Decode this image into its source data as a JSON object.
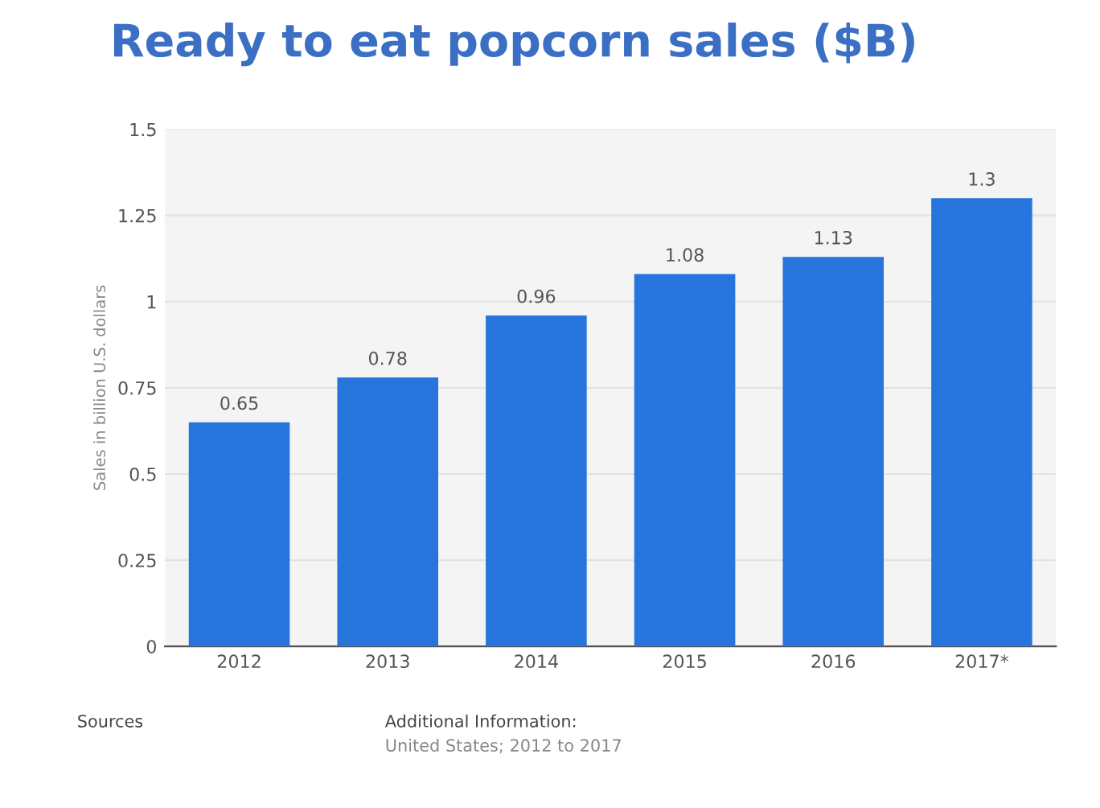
{
  "chart_data": {
    "type": "bar",
    "title": "Ready to eat popcorn sales ($B)",
    "ylabel": "Sales in billion U.S. dollars",
    "categories": [
      "2012",
      "2013",
      "2014",
      "2015",
      "2016",
      "2017*"
    ],
    "values": [
      0.65,
      0.78,
      0.96,
      1.08,
      1.13,
      1.3
    ],
    "color": "#2775dc",
    "ylim": [
      0,
      1.5
    ],
    "yticks": [
      0,
      0.25,
      0.5,
      0.75,
      1,
      1.25,
      1.5
    ],
    "grid": "y",
    "data_labels": true,
    "annotations": [
      "Sources",
      "Additional Information:",
      "United States; 2012 to 2017"
    ]
  }
}
